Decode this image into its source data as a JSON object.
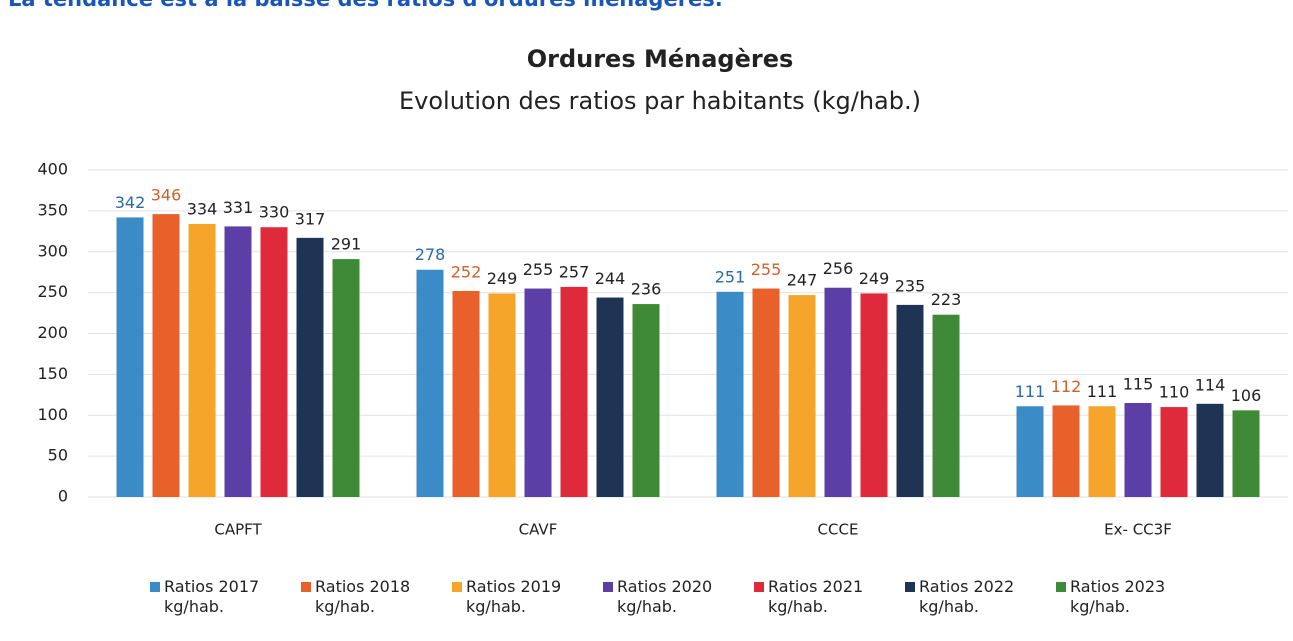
{
  "heading": "La tendance est à la baisse des ratios d'ordures ménagères.",
  "chart_data": {
    "type": "bar",
    "title": "Ordures Ménagères",
    "subtitle": "Evolution des ratios par habitants (kg/hab.)",
    "categories": [
      "CAPFT",
      "CAVF",
      "CCCE",
      "Ex- CC3F"
    ],
    "series": [
      {
        "name": "Ratios 2017 kg/hab.",
        "color": "#3b8bc6",
        "label_color": "#2a6aa8",
        "values": [
          342,
          278,
          251,
          111
        ]
      },
      {
        "name": "Ratios 2018 kg/hab.",
        "color": "#e8602a",
        "label_color": "#d0602a",
        "values": [
          346,
          252,
          255,
          112
        ]
      },
      {
        "name": "Ratios 2019 kg/hab.",
        "color": "#f4a52a",
        "label_color": "#222",
        "values": [
          334,
          249,
          247,
          111
        ]
      },
      {
        "name": "Ratios 2020 kg/hab.",
        "color": "#5b3fa6",
        "label_color": "#222",
        "values": [
          331,
          255,
          256,
          115
        ]
      },
      {
        "name": "Ratios 2021 kg/hab.",
        "color": "#de2a3a",
        "label_color": "#222",
        "values": [
          330,
          257,
          249,
          110
        ]
      },
      {
        "name": "Ratios 2022 kg/hab.",
        "color": "#1f3454",
        "label_color": "#222",
        "values": [
          317,
          244,
          235,
          114
        ]
      },
      {
        "name": "Ratios 2023 kg/hab.",
        "color": "#3f8a36",
        "label_color": "#222",
        "values": [
          291,
          236,
          223,
          106
        ]
      }
    ],
    "ylim": [
      0,
      400
    ],
    "yticks": [
      0,
      50,
      100,
      150,
      200,
      250,
      300,
      350,
      400
    ],
    "grid": true,
    "legend": "bottom"
  }
}
